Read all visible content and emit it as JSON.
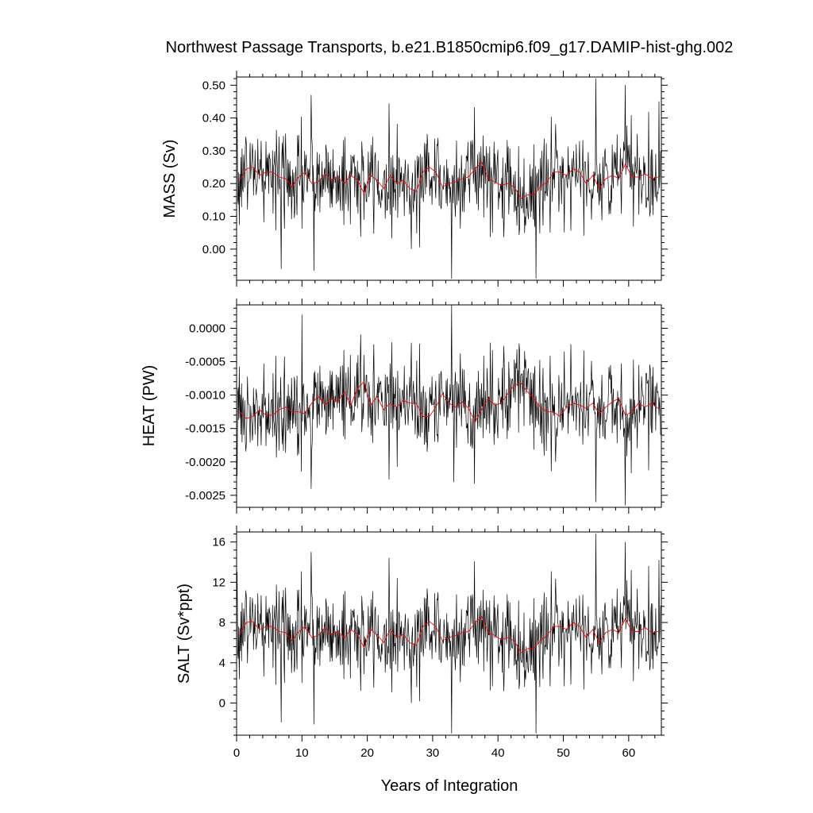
{
  "title": "Northwest Passage Transports, b.e21.B1850cmip6.f09_g17.DAMIP-hist-ghg.002",
  "xlabel": "Years of Integration",
  "colors": {
    "raw_series": "#000000",
    "smoothed_series": "#ff0000",
    "frame": "#000000",
    "background": "#ffffff"
  },
  "chart_data": [
    {
      "type": "line",
      "panel": "mass",
      "ylabel": "MASS (Sv)",
      "xlim": [
        0,
        65
      ],
      "ylim": [
        -0.095,
        0.525
      ],
      "xticks": [
        0,
        10,
        20,
        30,
        40,
        50,
        60
      ],
      "xtick_labels": [
        "0",
        "10",
        "20",
        "30",
        "40",
        "50",
        "60"
      ],
      "yticks": [
        0.0,
        0.1,
        0.2,
        0.3,
        0.4,
        0.5
      ],
      "ytick_labels": [
        "0.00",
        "0.10",
        "0.20",
        "0.30",
        "0.40",
        "0.50"
      ],
      "grid": false,
      "series": [
        {
          "role": "monthly",
          "x_start": 0,
          "x_step": 0.0833,
          "count": 780,
          "range": [
            -0.09,
            0.52
          ],
          "mean": 0.215,
          "notable": [
            {
              "x": 0.1,
              "y": 0.4
            },
            {
              "x": 6.8,
              "y": -0.06
            },
            {
              "x": 11.4,
              "y": 0.47
            },
            {
              "x": 11.8,
              "y": -0.065
            },
            {
              "x": 32.9,
              "y": -0.09
            },
            {
              "x": 45.8,
              "y": -0.09
            },
            {
              "x": 55.0,
              "y": 0.52
            },
            {
              "x": 59.5,
              "y": 0.5
            },
            {
              "x": 64.6,
              "y": 0.45
            }
          ]
        },
        {
          "role": "annual_mean",
          "x": [
            0.5,
            1.5,
            2.5,
            3.5,
            4.5,
            5.5,
            6.5,
            7.5,
            8.5,
            9.5,
            10.5,
            11.5,
            12.5,
            13.5,
            14.5,
            15.5,
            16.5,
            17.5,
            18.5,
            19.5,
            20.5,
            21.5,
            22.5,
            23.5,
            24.5,
            25.5,
            26.5,
            27.5,
            28.5,
            29.5,
            30.5,
            31.5,
            32.5,
            33.5,
            34.5,
            35.5,
            36.5,
            37.5,
            38.5,
            39.5,
            40.5,
            41.5,
            42.5,
            43.5,
            44.5,
            45.5,
            46.5,
            47.5,
            48.5,
            49.5,
            50.5,
            51.5,
            52.5,
            53.5,
            54.5,
            55.5,
            56.5,
            57.5,
            58.5,
            59.5,
            60.5,
            61.5,
            62.5,
            63.5,
            64.5
          ],
          "y": [
            0.21,
            0.245,
            0.25,
            0.225,
            0.235,
            0.235,
            0.22,
            0.215,
            0.19,
            0.22,
            0.235,
            0.2,
            0.205,
            0.23,
            0.21,
            0.22,
            0.2,
            0.225,
            0.21,
            0.17,
            0.225,
            0.21,
            0.185,
            0.225,
            0.2,
            0.21,
            0.185,
            0.175,
            0.235,
            0.25,
            0.235,
            0.19,
            0.2,
            0.205,
            0.215,
            0.22,
            0.245,
            0.265,
            0.215,
            0.205,
            0.195,
            0.2,
            0.19,
            0.155,
            0.165,
            0.165,
            0.19,
            0.205,
            0.235,
            0.235,
            0.225,
            0.245,
            0.235,
            0.2,
            0.225,
            0.185,
            0.215,
            0.225,
            0.215,
            0.26,
            0.22,
            0.22,
            0.23,
            0.215,
            0.22
          ]
        }
      ]
    },
    {
      "type": "line",
      "panel": "heat",
      "ylabel": "HEAT (PW)",
      "xlim": [
        0,
        65
      ],
      "ylim": [
        -0.00268,
        0.00035
      ],
      "xticks": [
        0,
        10,
        20,
        30,
        40,
        50,
        60
      ],
      "xtick_labels": [
        "0",
        "10",
        "20",
        "30",
        "40",
        "50",
        "60"
      ],
      "yticks": [
        0.0,
        -0.0005,
        -0.001,
        -0.0015,
        -0.002,
        -0.0025
      ],
      "ytick_labels": [
        "0.0000",
        "-0.0005",
        "-0.0010",
        "-0.0015",
        "-0.0020",
        "-0.0025"
      ],
      "grid": false,
      "series": [
        {
          "role": "monthly",
          "x_start": 0,
          "x_step": 0.0833,
          "count": 780,
          "range": [
            -0.00268,
            0.00035
          ],
          "mean": -0.00115,
          "notable": [
            {
              "x": 0.1,
              "y": -0.0022
            },
            {
              "x": 10.0,
              "y": 0.0002
            },
            {
              "x": 11.4,
              "y": -0.0024
            },
            {
              "x": 32.9,
              "y": 0.00035
            },
            {
              "x": 33.2,
              "y": -0.0023
            },
            {
              "x": 55.0,
              "y": -0.0026
            },
            {
              "x": 59.5,
              "y": -0.00265
            }
          ]
        },
        {
          "role": "annual_mean",
          "x": [
            0.5,
            1.5,
            2.5,
            3.5,
            4.5,
            5.5,
            6.5,
            7.5,
            8.5,
            9.5,
            10.5,
            11.5,
            12.5,
            13.5,
            14.5,
            15.5,
            16.5,
            17.5,
            18.5,
            19.5,
            20.5,
            21.5,
            22.5,
            23.5,
            24.5,
            25.5,
            26.5,
            27.5,
            28.5,
            29.5,
            30.5,
            31.5,
            32.5,
            33.5,
            34.5,
            35.5,
            36.5,
            37.5,
            38.5,
            39.5,
            40.5,
            41.5,
            42.5,
            43.5,
            44.5,
            45.5,
            46.5,
            47.5,
            48.5,
            49.5,
            50.5,
            51.5,
            52.5,
            53.5,
            54.5,
            55.5,
            56.5,
            57.5,
            58.5,
            59.5,
            60.5,
            61.5,
            62.5,
            63.5,
            64.5
          ],
          "y": [
            -0.00125,
            -0.00135,
            -0.00132,
            -0.00122,
            -0.0013,
            -0.0013,
            -0.00122,
            -0.00118,
            -0.00125,
            -0.00125,
            -0.00128,
            -0.00112,
            -0.00102,
            -0.00115,
            -0.00105,
            -0.0011,
            -0.00095,
            -0.00115,
            -0.0009,
            -0.0008,
            -0.00115,
            -0.00102,
            -0.00122,
            -0.00112,
            -0.00118,
            -0.00108,
            -0.00112,
            -0.00112,
            -0.00132,
            -0.00132,
            -0.00118,
            -0.00098,
            -0.00112,
            -0.00118,
            -0.0011,
            -0.0012,
            -0.0014,
            -0.00122,
            -0.00105,
            -0.00115,
            -0.00112,
            -0.00098,
            -0.00085,
            -0.00082,
            -0.00095,
            -0.00105,
            -0.00118,
            -0.00125,
            -0.00125,
            -0.00132,
            -0.00118,
            -0.00112,
            -0.00115,
            -0.0012,
            -0.00112,
            -0.00128,
            -0.00118,
            -0.0011,
            -0.00105,
            -0.0013,
            -0.00125,
            -0.00112,
            -0.00118,
            -0.00112,
            -0.0012
          ]
        }
      ]
    },
    {
      "type": "line",
      "panel": "salt",
      "ylabel": "SALT (Sv*ppt)",
      "xlim": [
        0,
        65
      ],
      "ylim": [
        -3.2,
        17.0
      ],
      "xticks": [
        0,
        10,
        20,
        30,
        40,
        50,
        60
      ],
      "xtick_labels": [
        "0",
        "10",
        "20",
        "30",
        "40",
        "50",
        "60"
      ],
      "yticks": [
        0,
        4,
        8,
        12,
        16
      ],
      "ytick_labels": [
        "0",
        "4",
        "8",
        "12",
        "16"
      ],
      "grid": false,
      "series": [
        {
          "role": "monthly",
          "x_start": 0,
          "x_step": 0.0833,
          "count": 780,
          "range": [
            -3.0,
            16.8
          ],
          "mean": 6.9,
          "notable": [
            {
              "x": 0.1,
              "y": 13.0
            },
            {
              "x": 6.8,
              "y": -1.9
            },
            {
              "x": 11.4,
              "y": 15.0
            },
            {
              "x": 11.8,
              "y": -2.1
            },
            {
              "x": 32.9,
              "y": -3.0
            },
            {
              "x": 45.8,
              "y": -3.0
            },
            {
              "x": 55.0,
              "y": 16.8
            },
            {
              "x": 59.5,
              "y": 16.0
            },
            {
              "x": 64.6,
              "y": 14.2
            }
          ]
        },
        {
          "role": "annual_mean",
          "x": [
            0.5,
            1.5,
            2.5,
            3.5,
            4.5,
            5.5,
            6.5,
            7.5,
            8.5,
            9.5,
            10.5,
            11.5,
            12.5,
            13.5,
            14.5,
            15.5,
            16.5,
            17.5,
            18.5,
            19.5,
            20.5,
            21.5,
            22.5,
            23.5,
            24.5,
            25.5,
            26.5,
            27.5,
            28.5,
            29.5,
            30.5,
            31.5,
            32.5,
            33.5,
            34.5,
            35.5,
            36.5,
            37.5,
            38.5,
            39.5,
            40.5,
            41.5,
            42.5,
            43.5,
            44.5,
            45.5,
            46.5,
            47.5,
            48.5,
            49.5,
            50.5,
            51.5,
            52.5,
            53.5,
            54.5,
            55.5,
            56.5,
            57.5,
            58.5,
            59.5,
            60.5,
            61.5,
            62.5,
            63.5,
            64.5
          ],
          "y": [
            6.8,
            8.0,
            8.1,
            7.3,
            7.6,
            7.6,
            7.1,
            7.0,
            6.2,
            7.1,
            7.6,
            6.5,
            6.7,
            7.5,
            6.8,
            7.1,
            6.5,
            7.3,
            6.8,
            5.5,
            7.3,
            6.8,
            6.0,
            7.3,
            6.5,
            6.8,
            6.0,
            5.7,
            7.6,
            8.1,
            7.6,
            6.2,
            6.5,
            6.7,
            7.0,
            7.1,
            8.0,
            8.6,
            7.0,
            6.7,
            6.3,
            6.5,
            6.2,
            5.0,
            5.4,
            5.4,
            6.2,
            6.7,
            7.6,
            7.6,
            7.3,
            8.0,
            7.6,
            6.5,
            7.3,
            6.0,
            7.0,
            7.3,
            7.0,
            8.4,
            7.1,
            7.1,
            7.5,
            7.0,
            7.1
          ]
        }
      ]
    }
  ]
}
